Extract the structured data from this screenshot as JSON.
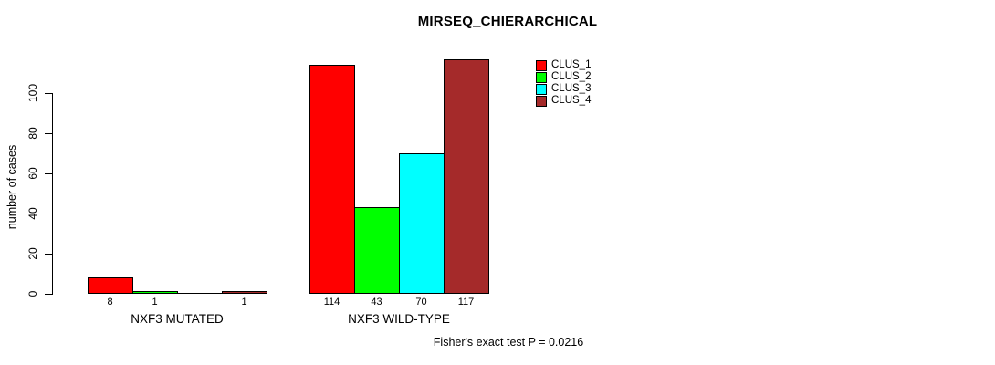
{
  "title": "MIRSEQ_CHIERARCHICAL",
  "footer": "Fisher's exact test P = 0.0216",
  "y_axis": {
    "label": "number of cases",
    "ticks": [
      0,
      20,
      40,
      60,
      80,
      100
    ]
  },
  "legend": {
    "items": [
      {
        "label": "CLUS_1",
        "color": "#FF0000"
      },
      {
        "label": "CLUS_2",
        "color": "#00FF00"
      },
      {
        "label": "CLUS_3",
        "color": "#00FFFF"
      },
      {
        "label": "CLUS_4",
        "color": "#A52A2A"
      }
    ]
  },
  "chart_data": {
    "type": "bar",
    "title": "MIRSEQ_CHIERARCHICAL",
    "categories": [
      "NXF3 MUTATED",
      "NXF3 WILD-TYPE"
    ],
    "series": [
      {
        "name": "CLUS_1",
        "color": "#FF0000",
        "values": [
          8,
          114
        ]
      },
      {
        "name": "CLUS_2",
        "color": "#00FF00",
        "values": [
          1,
          43
        ]
      },
      {
        "name": "CLUS_3",
        "color": "#00FFFF",
        "values": [
          0,
          70
        ]
      },
      {
        "name": "CLUS_4",
        "color": "#A52A2A",
        "values": [
          1,
          117
        ]
      }
    ],
    "xlabel": "",
    "ylabel": "number of cases",
    "ylim": [
      0,
      100
    ],
    "grid": false,
    "legend_position": "upper-right-inside",
    "bar_value_labels_shown": true,
    "zero_value_labels_hidden": true,
    "annotation": "Fisher's exact test P = 0.0216"
  }
}
